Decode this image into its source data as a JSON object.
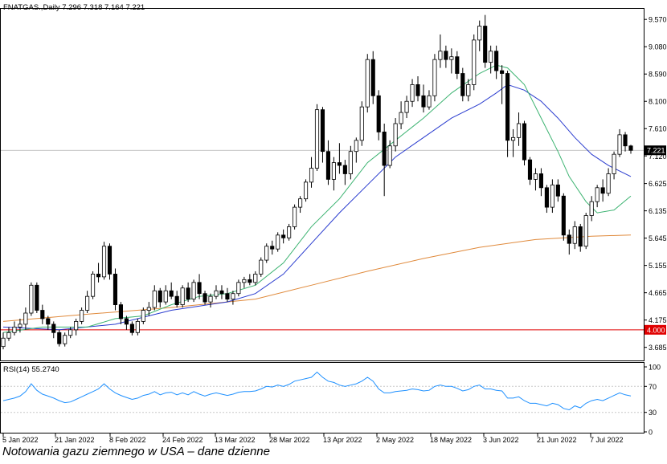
{
  "header": {
    "symbol": "FNATGAS.,Daily",
    "ohlc": "7.296 7.318 7.164 7.221"
  },
  "caption": "Notowania gazu ziemnego w USA – dane dzienne",
  "colors": {
    "bull": "#ffffff",
    "bear": "#000000",
    "ma_fast": "#3cb371",
    "ma_mid": "#2a3ccf",
    "ma_slow": "#e08a3c",
    "level_line": "#e00000",
    "rsi_line": "#1e90ff",
    "price_tag_bg": "#000000"
  },
  "chart_data": [
    {
      "type": "candlestick",
      "title": "FNATGAS.,Daily",
      "xlabel": "",
      "ylabel": "",
      "ylim": [
        3.45,
        9.76
      ],
      "yticks": [
        "9.570",
        "9.080",
        "8.590",
        "8.100",
        "7.610",
        "7.120",
        "6.625",
        "6.135",
        "5.645",
        "5.155",
        "4.665",
        "4.175",
        "3.685"
      ],
      "xticks": [
        "5 Jan 2022",
        "21 Jan 2022",
        "8 Feb 2022",
        "24 Feb 2022",
        "13 Mar 2022",
        "28 Mar 2022",
        "13 Apr 2022",
        "2 May 2022",
        "18 May 2022",
        "3 Jun 2022",
        "21 Jun 2022",
        "7 Jul 2022"
      ],
      "current_price": "7.221",
      "level_line": "4.000",
      "candles": [
        [
          3.7,
          3.95,
          3.65,
          3.85
        ],
        [
          3.85,
          4.05,
          3.8,
          3.95
        ],
        [
          3.95,
          4.15,
          3.9,
          4.05
        ],
        [
          4.05,
          4.2,
          3.95,
          4.1
        ],
        [
          4.1,
          4.4,
          4.0,
          4.3
        ],
        [
          4.3,
          4.85,
          4.25,
          4.8
        ],
        [
          4.8,
          4.85,
          4.3,
          4.35
        ],
        [
          4.35,
          4.45,
          4.1,
          4.2
        ],
        [
          4.2,
          4.25,
          4.0,
          4.1
        ],
        [
          4.1,
          4.15,
          3.85,
          3.95
        ],
        [
          3.95,
          4.0,
          3.7,
          3.75
        ],
        [
          3.75,
          3.95,
          3.7,
          3.9
        ],
        [
          3.9,
          4.05,
          3.85,
          4.0
        ],
        [
          4.0,
          4.2,
          3.9,
          4.15
        ],
        [
          4.15,
          4.4,
          4.1,
          4.35
        ],
        [
          4.35,
          4.7,
          4.3,
          4.6
        ],
        [
          4.6,
          5.05,
          4.55,
          5.0
        ],
        [
          5.0,
          5.2,
          4.85,
          4.95
        ],
        [
          4.95,
          5.58,
          4.9,
          5.5
        ],
        [
          5.5,
          5.55,
          4.9,
          5.0
        ],
        [
          5.0,
          5.1,
          4.35,
          4.45
        ],
        [
          4.45,
          4.5,
          4.1,
          4.2
        ],
        [
          4.2,
          4.25,
          4.0,
          4.1
        ],
        [
          4.1,
          4.15,
          3.9,
          3.95
        ],
        [
          3.95,
          4.2,
          3.9,
          4.15
        ],
        [
          4.15,
          4.4,
          4.1,
          4.35
        ],
        [
          4.35,
          4.5,
          4.25,
          4.4
        ],
        [
          4.4,
          4.8,
          4.35,
          4.7
        ],
        [
          4.7,
          4.75,
          4.4,
          4.5
        ],
        [
          4.5,
          4.8,
          4.45,
          4.7
        ],
        [
          4.7,
          4.85,
          4.55,
          4.6
        ],
        [
          4.6,
          4.7,
          4.4,
          4.45
        ],
        [
          4.45,
          4.8,
          4.4,
          4.75
        ],
        [
          4.75,
          4.85,
          4.5,
          4.55
        ],
        [
          4.55,
          4.9,
          4.5,
          4.85
        ],
        [
          4.85,
          5.0,
          4.55,
          4.65
        ],
        [
          4.65,
          4.7,
          4.45,
          4.5
        ],
        [
          4.5,
          4.65,
          4.4,
          4.6
        ],
        [
          4.6,
          4.8,
          4.55,
          4.7
        ],
        [
          4.7,
          4.8,
          4.55,
          4.65
        ],
        [
          4.65,
          4.75,
          4.5,
          4.55
        ],
        [
          4.55,
          4.7,
          4.45,
          4.65
        ],
        [
          4.65,
          4.9,
          4.6,
          4.85
        ],
        [
          4.85,
          4.95,
          4.75,
          4.9
        ],
        [
          4.9,
          5.0,
          4.8,
          4.85
        ],
        [
          4.85,
          5.05,
          4.8,
          5.0
        ],
        [
          5.0,
          5.3,
          4.95,
          5.25
        ],
        [
          5.25,
          5.55,
          5.2,
          5.5
        ],
        [
          5.5,
          5.6,
          5.35,
          5.45
        ],
        [
          5.45,
          5.75,
          5.4,
          5.7
        ],
        [
          5.7,
          5.8,
          5.55,
          5.65
        ],
        [
          5.65,
          5.9,
          5.6,
          5.85
        ],
        [
          5.85,
          6.25,
          5.8,
          6.2
        ],
        [
          6.2,
          6.4,
          6.1,
          6.35
        ],
        [
          6.35,
          6.7,
          6.3,
          6.65
        ],
        [
          6.65,
          7.1,
          6.55,
          6.9
        ],
        [
          6.9,
          8.05,
          6.85,
          7.95
        ],
        [
          7.95,
          8.0,
          7.0,
          7.2
        ],
        [
          7.2,
          7.4,
          6.6,
          6.7
        ],
        [
          6.7,
          7.1,
          6.5,
          7.0
        ],
        [
          7.0,
          7.35,
          6.8,
          6.95
        ],
        [
          6.95,
          7.05,
          6.6,
          6.8
        ],
        [
          6.8,
          7.3,
          6.7,
          7.2
        ],
        [
          7.2,
          7.45,
          7.0,
          7.4
        ],
        [
          7.4,
          8.1,
          7.3,
          8.0
        ],
        [
          8.0,
          8.95,
          7.9,
          8.85
        ],
        [
          8.85,
          9.0,
          8.05,
          8.2
        ],
        [
          8.2,
          8.3,
          7.4,
          7.55
        ],
        [
          7.55,
          7.7,
          6.4,
          6.95
        ],
        [
          6.95,
          7.4,
          6.9,
          7.3
        ],
        [
          7.3,
          7.8,
          7.2,
          7.7
        ],
        [
          7.7,
          8.1,
          7.6,
          7.9
        ],
        [
          7.9,
          8.2,
          7.8,
          8.1
        ],
        [
          8.1,
          8.5,
          8.0,
          8.4
        ],
        [
          8.4,
          8.55,
          8.1,
          8.2
        ],
        [
          8.2,
          8.4,
          7.9,
          8.0
        ],
        [
          8.0,
          8.3,
          7.95,
          8.2
        ],
        [
          8.2,
          8.95,
          8.1,
          8.85
        ],
        [
          8.85,
          9.3,
          8.7,
          9.0
        ],
        [
          9.0,
          9.1,
          8.7,
          8.85
        ],
        [
          8.85,
          9.05,
          8.6,
          8.9
        ],
        [
          8.9,
          9.0,
          8.5,
          8.6
        ],
        [
          8.6,
          8.7,
          8.1,
          8.2
        ],
        [
          8.2,
          8.5,
          8.1,
          8.4
        ],
        [
          8.4,
          9.3,
          8.3,
          9.2
        ],
        [
          9.2,
          9.55,
          9.0,
          9.45
        ],
        [
          9.45,
          9.65,
          8.7,
          8.8
        ],
        [
          8.8,
          9.1,
          8.6,
          9.0
        ],
        [
          9.0,
          9.1,
          8.5,
          8.65
        ],
        [
          8.65,
          8.75,
          8.05,
          8.6
        ],
        [
          8.6,
          8.65,
          7.1,
          7.4
        ],
        [
          7.4,
          7.6,
          7.1,
          7.45
        ],
        [
          7.45,
          7.9,
          7.3,
          7.7
        ],
        [
          7.7,
          7.75,
          6.95,
          7.05
        ],
        [
          7.05,
          7.1,
          6.6,
          6.7
        ],
        [
          6.7,
          6.9,
          6.5,
          6.8
        ],
        [
          6.8,
          6.9,
          6.4,
          6.55
        ],
        [
          6.55,
          6.6,
          6.1,
          6.2
        ],
        [
          6.2,
          6.7,
          6.1,
          6.6
        ],
        [
          6.6,
          6.7,
          6.3,
          6.4
        ],
        [
          6.4,
          6.45,
          5.6,
          5.7
        ],
        [
          5.7,
          5.8,
          5.35,
          5.55
        ],
        [
          5.55,
          5.95,
          5.45,
          5.85
        ],
        [
          5.85,
          5.9,
          5.4,
          5.5
        ],
        [
          5.5,
          6.1,
          5.45,
          6.05
        ],
        [
          6.05,
          6.4,
          5.95,
          6.3
        ],
        [
          6.3,
          6.6,
          6.2,
          6.55
        ],
        [
          6.55,
          6.7,
          6.3,
          6.45
        ],
        [
          6.45,
          6.9,
          6.4,
          6.8
        ],
        [
          6.8,
          7.2,
          6.7,
          7.15
        ],
        [
          7.15,
          7.6,
          7.1,
          7.5
        ],
        [
          7.5,
          7.55,
          7.2,
          7.3
        ],
        [
          7.3,
          7.32,
          7.16,
          7.22
        ]
      ],
      "ma_fast": [
        [
          0,
          3.95
        ],
        [
          7,
          4.05
        ],
        [
          15,
          4.05
        ],
        [
          20,
          4.2
        ],
        [
          25,
          4.25
        ],
        [
          30,
          4.45
        ],
        [
          35,
          4.6
        ],
        [
          40,
          4.65
        ],
        [
          45,
          4.8
        ],
        [
          50,
          5.2
        ],
        [
          55,
          5.85
        ],
        [
          60,
          6.35
        ],
        [
          65,
          7.0
        ],
        [
          70,
          7.4
        ],
        [
          75,
          7.8
        ],
        [
          80,
          8.25
        ],
        [
          85,
          8.6
        ],
        [
          88,
          8.75
        ],
        [
          90,
          8.7
        ],
        [
          93,
          8.4
        ],
        [
          96,
          7.8
        ],
        [
          99,
          7.2
        ],
        [
          101,
          6.75
        ],
        [
          104,
          6.3
        ],
        [
          106,
          6.1
        ],
        [
          109,
          6.15
        ],
        [
          112,
          6.4
        ]
      ],
      "ma_mid": [
        [
          0,
          4.05
        ],
        [
          10,
          4.0
        ],
        [
          20,
          4.1
        ],
        [
          30,
          4.35
        ],
        [
          40,
          4.5
        ],
        [
          45,
          4.65
        ],
        [
          50,
          5.0
        ],
        [
          55,
          5.55
        ],
        [
          60,
          6.1
        ],
        [
          65,
          6.6
        ],
        [
          70,
          7.1
        ],
        [
          75,
          7.45
        ],
        [
          80,
          7.8
        ],
        [
          85,
          8.05
        ],
        [
          88,
          8.25
        ],
        [
          90,
          8.4
        ],
        [
          93,
          8.3
        ],
        [
          96,
          8.1
        ],
        [
          99,
          7.8
        ],
        [
          102,
          7.45
        ],
        [
          105,
          7.15
        ],
        [
          108,
          6.95
        ],
        [
          112,
          6.75
        ]
      ],
      "ma_slow": [
        [
          0,
          4.15
        ],
        [
          15,
          4.28
        ],
        [
          30,
          4.4
        ],
        [
          45,
          4.55
        ],
        [
          55,
          4.8
        ],
        [
          65,
          5.05
        ],
        [
          75,
          5.28
        ],
        [
          85,
          5.48
        ],
        [
          95,
          5.62
        ],
        [
          105,
          5.68
        ],
        [
          112,
          5.7
        ]
      ]
    },
    {
      "type": "line",
      "title": "RSI(14) 55.2740",
      "ylim": [
        0,
        100
      ],
      "yticks": [
        "100",
        "70",
        "30",
        "0"
      ],
      "series": [
        {
          "values": [
            48,
            50,
            52,
            55,
            62,
            74,
            64,
            58,
            55,
            52,
            48,
            45,
            46,
            50,
            54,
            58,
            62,
            66,
            74,
            66,
            60,
            56,
            53,
            50,
            52,
            56,
            58,
            62,
            57,
            60,
            61,
            57,
            60,
            57,
            62,
            58,
            55,
            58,
            60,
            58,
            56,
            58,
            61,
            62,
            62,
            63,
            66,
            70,
            69,
            72,
            70,
            73,
            78,
            80,
            82,
            84,
            92,
            84,
            78,
            76,
            72,
            70,
            72,
            74,
            78,
            84,
            78,
            66,
            60,
            60,
            62,
            63,
            64,
            66,
            65,
            63,
            64,
            70,
            72,
            70,
            70,
            67,
            63,
            65,
            70,
            72,
            66,
            66,
            64,
            63,
            52,
            52,
            54,
            48,
            44,
            44,
            42,
            40,
            44,
            42,
            36,
            34,
            40,
            37,
            44,
            48,
            50,
            48,
            52,
            56,
            60,
            57,
            55.27
          ]
        }
      ]
    }
  ]
}
